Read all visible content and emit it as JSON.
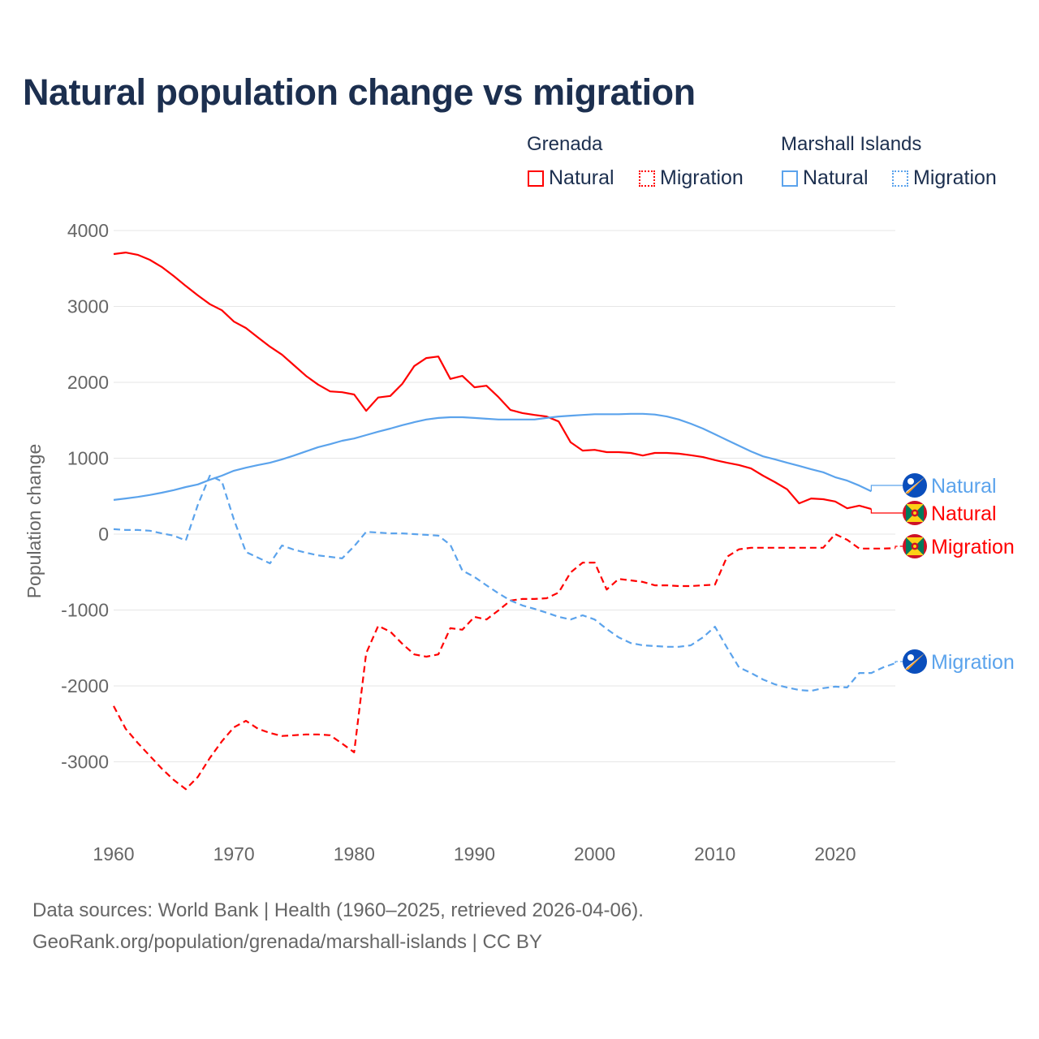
{
  "chart_data": {
    "type": "line",
    "title": "Natural population change vs migration",
    "xlabel": "",
    "ylabel": "Population change",
    "xlim": [
      1960,
      2025
    ],
    "ylim": [
      -3600,
      4300
    ],
    "x_ticks": [
      1960,
      1970,
      1980,
      1990,
      2000,
      2010,
      2020
    ],
    "y_ticks": [
      4000,
      3000,
      2000,
      1000,
      0,
      -1000,
      -2000,
      -3000
    ],
    "grid": true,
    "legend": {
      "placement": "top-right",
      "groups": [
        {
          "name": "Grenada",
          "items": [
            "Natural",
            "Migration"
          ]
        },
        {
          "name": "Marshall Islands",
          "items": [
            "Natural",
            "Migration"
          ]
        }
      ]
    },
    "series": [
      {
        "name": "Grenada Natural",
        "country": "Grenada",
        "label": "Natural",
        "color": "#ff0000",
        "dashed": false,
        "start_year": 1960,
        "values": [
          3690,
          3710,
          3680,
          3615,
          3520,
          3400,
          3270,
          3145,
          3030,
          2950,
          2800,
          2715,
          2590,
          2470,
          2365,
          2225,
          2085,
          1970,
          1880,
          1870,
          1840,
          1625,
          1800,
          1820,
          1980,
          2215,
          2320,
          2340,
          2045,
          2085,
          1935,
          1955,
          1805,
          1635,
          1595,
          1570,
          1550,
          1485,
          1210,
          1100,
          1110,
          1080,
          1080,
          1070,
          1035,
          1070,
          1070,
          1060,
          1040,
          1015,
          975,
          940,
          910,
          865,
          770,
          685,
          590,
          405,
          470,
          460,
          430,
          340,
          375,
          330
        ]
      },
      {
        "name": "Grenada Migration",
        "country": "Grenada",
        "label": "Migration",
        "color": "#ff0000",
        "dashed": true,
        "start_year": 1960,
        "values": [
          -2265,
          -2565,
          -2750,
          -2920,
          -3090,
          -3240,
          -3360,
          -3200,
          -2950,
          -2730,
          -2545,
          -2460,
          -2565,
          -2620,
          -2660,
          -2650,
          -2640,
          -2640,
          -2650,
          -2760,
          -2875,
          -1570,
          -1210,
          -1285,
          -1445,
          -1585,
          -1615,
          -1585,
          -1240,
          -1260,
          -1090,
          -1125,
          -1005,
          -875,
          -855,
          -855,
          -845,
          -770,
          -505,
          -375,
          -375,
          -730,
          -590,
          -610,
          -630,
          -675,
          -675,
          -685,
          -685,
          -675,
          -665,
          -300,
          -200,
          -180,
          -180,
          -180,
          -180,
          -180,
          -180,
          -180,
          0,
          -75,
          -190,
          -190,
          -190,
          -185
        ]
      },
      {
        "name": "Marshall Islands Natural",
        "country": "Marshall Islands",
        "label": "Natural",
        "color": "#5ba3ec",
        "dashed": false,
        "start_year": 1960,
        "values": [
          450,
          470,
          490,
          515,
          545,
          580,
          620,
          655,
          715,
          770,
          835,
          875,
          910,
          940,
          985,
          1035,
          1090,
          1145,
          1185,
          1230,
          1260,
          1305,
          1350,
          1390,
          1435,
          1475,
          1510,
          1530,
          1540,
          1540,
          1530,
          1520,
          1510,
          1510,
          1510,
          1510,
          1530,
          1550,
          1560,
          1570,
          1580,
          1580,
          1580,
          1585,
          1585,
          1575,
          1550,
          1510,
          1455,
          1390,
          1315,
          1240,
          1165,
          1090,
          1025,
          985,
          940,
          900,
          855,
          815,
          750,
          705,
          640,
          565
        ]
      },
      {
        "name": "Marshall Islands Migration",
        "country": "Marshall Islands",
        "label": "Migration",
        "color": "#5ba3ec",
        "dashed": true,
        "start_year": 1960,
        "values": [
          65,
          55,
          55,
          45,
          10,
          -20,
          -85,
          385,
          770,
          695,
          190,
          -235,
          -310,
          -385,
          -150,
          -205,
          -245,
          -280,
          -300,
          -320,
          -160,
          30,
          20,
          10,
          10,
          0,
          -10,
          -20,
          -140,
          -480,
          -565,
          -675,
          -780,
          -875,
          -940,
          -985,
          -1035,
          -1090,
          -1125,
          -1070,
          -1125,
          -1250,
          -1360,
          -1435,
          -1465,
          -1475,
          -1485,
          -1485,
          -1465,
          -1360,
          -1220,
          -1495,
          -1755,
          -1830,
          -1915,
          -1980,
          -2020,
          -2055,
          -2065,
          -2030,
          -2010,
          -2020,
          -1830,
          -1830,
          -1755,
          -1700
        ]
      }
    ]
  },
  "footer": {
    "line1": "Data sources: World Bank | Health (1960–2025, retrieved 2026-04-06).",
    "line2": "GeoRank.org/population/grenada/marshall-islands | CC BY"
  },
  "colors": {
    "grenada": "#ff0000",
    "marshall": "#5ba3ec",
    "title": "#1c2f4f"
  }
}
